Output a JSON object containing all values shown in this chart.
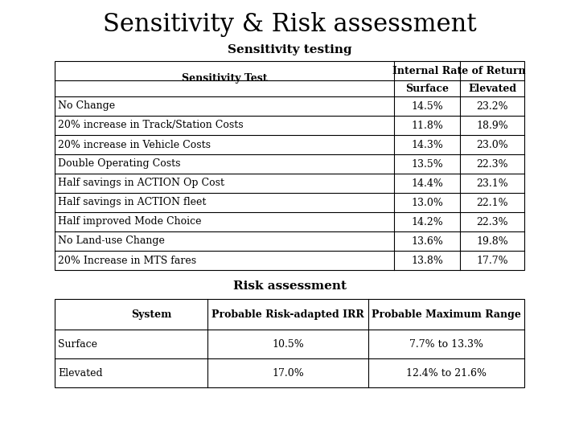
{
  "title": "Sensitivity & Risk assessment",
  "subtitle1": "Sensitivity testing",
  "subtitle2": "Risk assessment",
  "sensitivity_header_col1": "Sensitivity Test",
  "sensitivity_header_col2": "Internal Rate of Return",
  "sensitivity_header_sub1": "Surface",
  "sensitivity_header_sub2": "Elevated",
  "sensitivity_rows": [
    [
      "No Change",
      "14.5%",
      "23.2%"
    ],
    [
      "20% increase in Track/Station Costs",
      "11.8%",
      "18.9%"
    ],
    [
      "20% increase in Vehicle Costs",
      "14.3%",
      "23.0%"
    ],
    [
      "Double Operating Costs",
      "13.5%",
      "22.3%"
    ],
    [
      "Half savings in ACTION Op Cost",
      "14.4%",
      "23.1%"
    ],
    [
      "Half savings in ACTION fleet",
      "13.0%",
      "22.1%"
    ],
    [
      "Half improved Mode Choice",
      "14.2%",
      "22.3%"
    ],
    [
      "No Land-use Change",
      "13.6%",
      "19.8%"
    ],
    [
      "20% Increase in MTS fares",
      "13.8%",
      "17.7%"
    ]
  ],
  "risk_header": [
    "System",
    "Probable Risk-adapted IRR",
    "Probable Maximum Range"
  ],
  "risk_rows": [
    [
      "Surface",
      "10.5%",
      "7.7% to 13.3%"
    ],
    [
      "Elevated",
      "17.0%",
      "12.4% to 21.6%"
    ]
  ],
  "bg_color": "#ffffff",
  "text_color": "#000000",
  "title_fontsize": 22,
  "subtitle_fontsize": 11,
  "table_fontsize": 9
}
